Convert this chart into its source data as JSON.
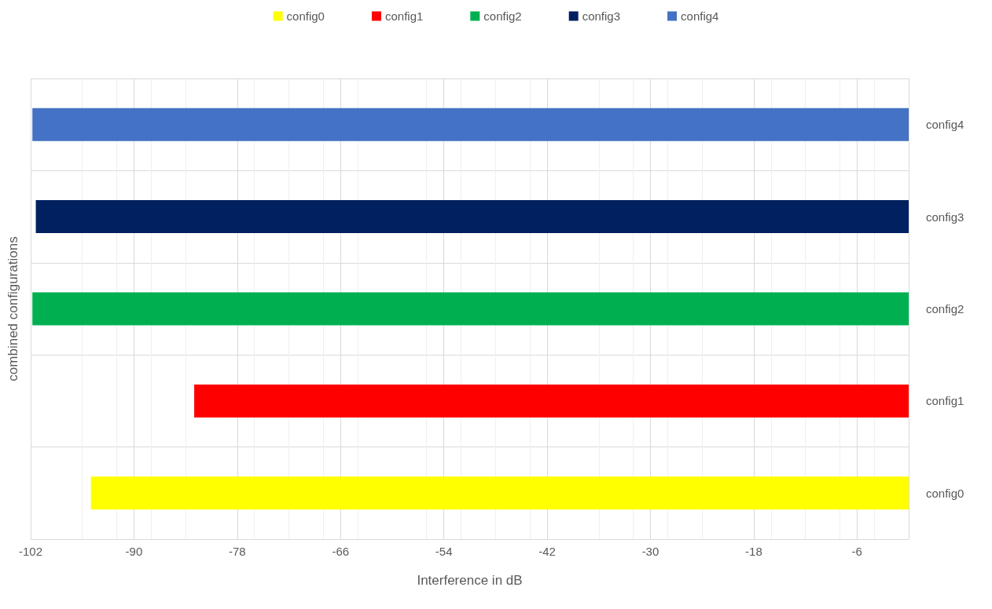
{
  "chart_data": {
    "type": "bar",
    "orientation": "horizontal",
    "xlabel": "Interference in dB",
    "ylabel": "combined configurations",
    "categories": [
      "config4",
      "config3",
      "config2",
      "config1",
      "config0"
    ],
    "series": [
      {
        "name": "config0",
        "color": "#ffff00",
        "values": [
          null,
          null,
          null,
          null,
          -95
        ]
      },
      {
        "name": "config1",
        "color": "#ff0000",
        "values": [
          null,
          null,
          null,
          -83,
          null
        ]
      },
      {
        "name": "config2",
        "color": "#00b050",
        "values": [
          null,
          null,
          -101.8,
          null,
          null
        ]
      },
      {
        "name": "config3",
        "color": "#002060",
        "values": [
          null,
          -101.4,
          null,
          null,
          null
        ]
      },
      {
        "name": "config4",
        "color": "#4472c4",
        "values": [
          -101.8,
          null,
          null,
          null,
          null
        ]
      }
    ],
    "xlim": [
      -102,
      0
    ],
    "xticks": [
      -102,
      -90,
      -78,
      -66,
      -54,
      -42,
      -30,
      -18,
      -6,
      {
        "value": 0,
        "label": null
      }
    ],
    "grid": true,
    "legend": "top"
  }
}
